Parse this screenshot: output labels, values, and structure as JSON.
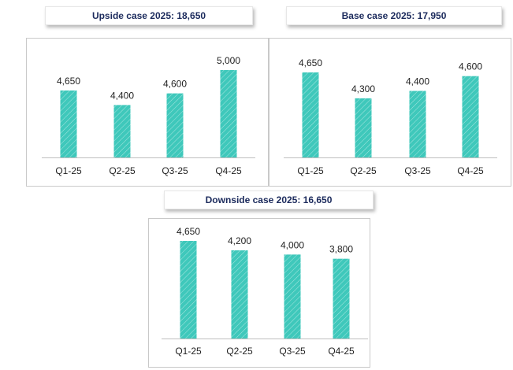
{
  "colors": {
    "bar": "#3fc8bb",
    "hatch": "#ffffff",
    "baseline": "#bfbfbf",
    "title_text": "#1b2a5c"
  },
  "chart_data": [
    {
      "type": "bar",
      "title": "Upside case 2025: 18,650",
      "categories": [
        "Q1-25",
        "Q2-25",
        "Q3-25",
        "Q4-25"
      ],
      "values": [
        4650,
        4400,
        4600,
        5000
      ],
      "value_labels": [
        "4,650",
        "4,400",
        "4,600",
        "5,000"
      ],
      "ylim": [
        3500,
        5000
      ]
    },
    {
      "type": "bar",
      "title": "Base case 2025: 17,950",
      "categories": [
        "Q1-25",
        "Q2-25",
        "Q3-25",
        "Q4-25"
      ],
      "values": [
        4650,
        4300,
        4400,
        4600
      ],
      "value_labels": [
        "4,650",
        "4,300",
        "4,400",
        "4,600"
      ],
      "ylim": [
        3500,
        4650
      ]
    },
    {
      "type": "bar",
      "title": "Downside case 2025: 16,650",
      "categories": [
        "Q1-25",
        "Q2-25",
        "Q3-25",
        "Q4-25"
      ],
      "values": [
        4650,
        4200,
        4000,
        3800
      ],
      "value_labels": [
        "4,650",
        "4,200",
        "4,000",
        "3,800"
      ],
      "ylim": [
        0,
        4650
      ]
    }
  ]
}
